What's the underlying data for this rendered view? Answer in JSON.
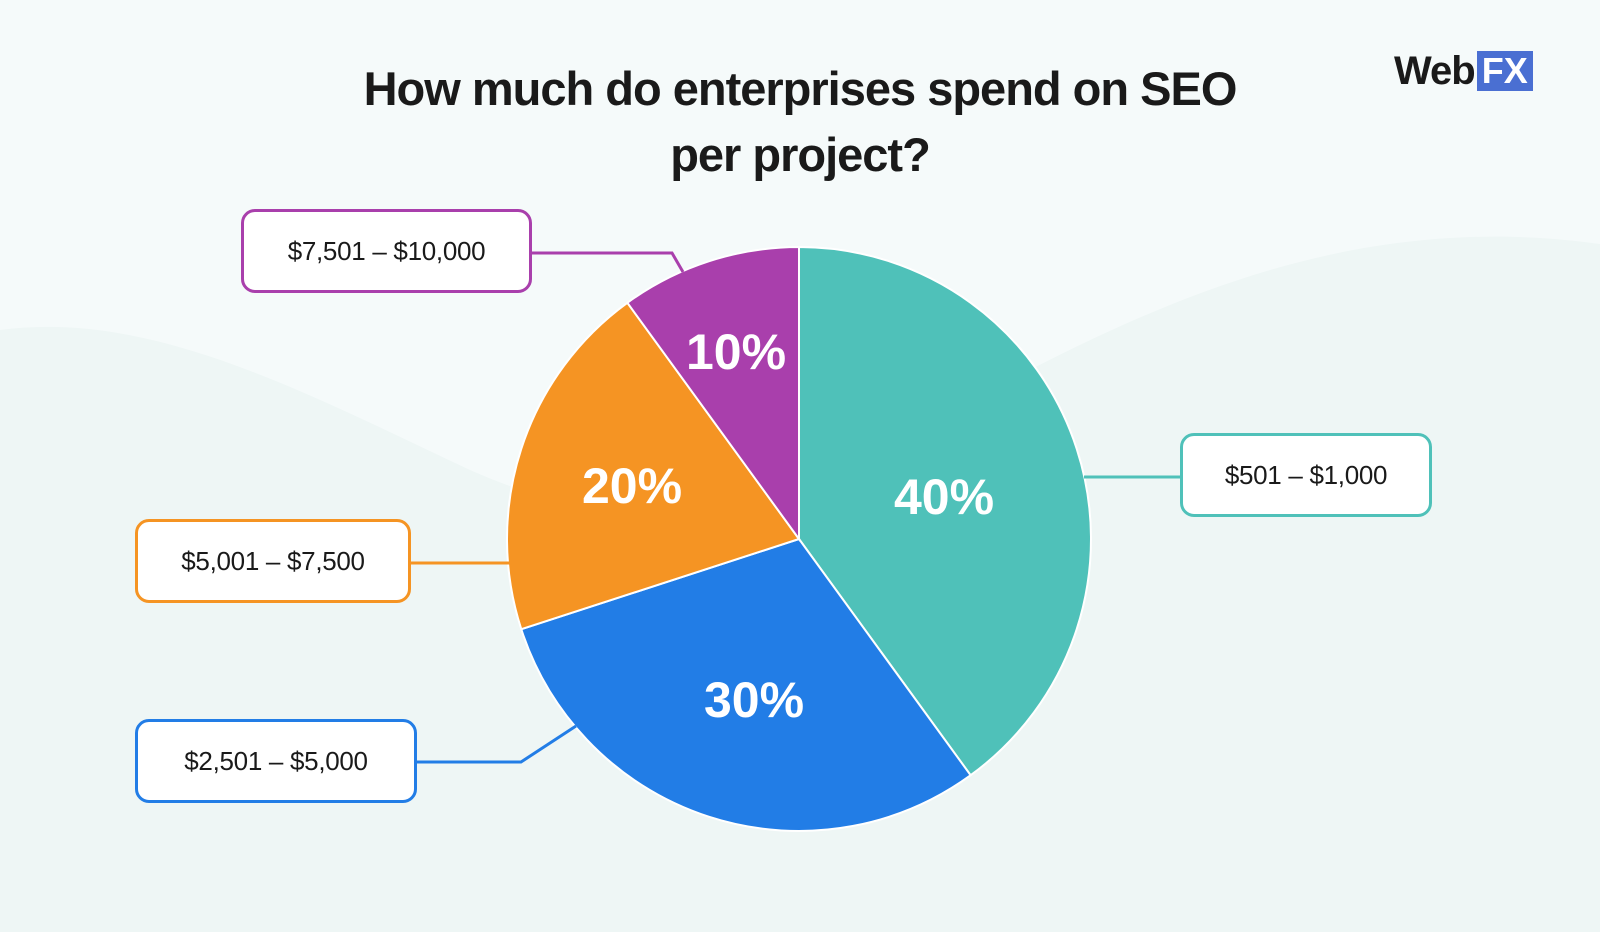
{
  "logo": {
    "word": "Web",
    "box": "FX"
  },
  "chart_data": {
    "type": "pie",
    "title": "How much do enterprises spend on SEO per project?",
    "title_lines": [
      "How much do enterprises spend on SEO",
      "per project?"
    ],
    "slices": [
      {
        "label": "$501 – $1,000",
        "value": 40,
        "value_label": "40%",
        "color": "#4fc1b9"
      },
      {
        "label": "$2,501 – $5,000",
        "value": 30,
        "value_label": "30%",
        "color": "#227de6"
      },
      {
        "label": "$5,001 – $7,500",
        "value": 20,
        "value_label": "20%",
        "color": "#f59423"
      },
      {
        "label": "$7,501 – $10,000",
        "value": 10,
        "value_label": "10%",
        "color": "#a93fac"
      }
    ],
    "legend": "callouts",
    "background": "#f5fafa"
  }
}
